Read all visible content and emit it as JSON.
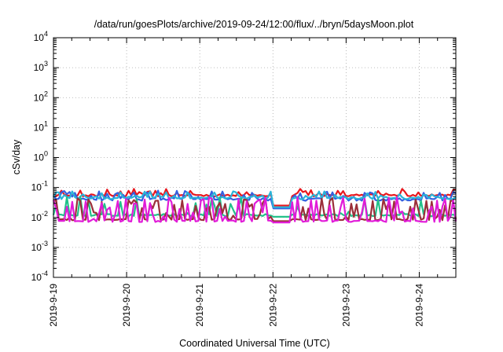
{
  "chart_data": {
    "type": "line",
    "title": "/data/run/goesPlots/archive/2019-09-24/12:00/flux/../bryn/5daysMoon.plot",
    "xlabel": "Coordinated Universal Time (UTC)",
    "ylabel": "cSv/day",
    "yscale": "log",
    "ylim": [
      0.0001,
      10000
    ],
    "y_ticks": [
      {
        "base": "10",
        "exp": "-4",
        "value": 0.0001
      },
      {
        "base": "10",
        "exp": "-3",
        "value": 0.001
      },
      {
        "base": "10",
        "exp": "-2",
        "value": 0.01
      },
      {
        "base": "10",
        "exp": "-1",
        "value": 0.1
      },
      {
        "base": "10",
        "exp": "0",
        "value": 1
      },
      {
        "base": "10",
        "exp": "1",
        "value": 10
      },
      {
        "base": "10",
        "exp": "2",
        "value": 100
      },
      {
        "base": "10",
        "exp": "3",
        "value": 1000
      },
      {
        "base": "10",
        "exp": "4",
        "value": 10000
      }
    ],
    "x_ticks": [
      "2019-9-19",
      "2019-9-20",
      "2019-9-21",
      "2019-9-22",
      "2019-9-23",
      "2019-9-24"
    ],
    "xlim": [
      "2019-09-19T00:00",
      "2019-09-24T12:00"
    ],
    "grid": true,
    "series": [
      {
        "color": "#e8171e",
        "base": 0.055,
        "dip": 0.05,
        "low": 0.025,
        "spike": 0.09,
        "spike_rate": 0.35,
        "jitter": 0.08,
        "seed": 11
      },
      {
        "color": "#3560e0",
        "base": 0.04,
        "dip": 0.04,
        "low": 0.02,
        "spike": 0.08,
        "spike_rate": 0.3,
        "jitter": 0.1,
        "seed": 23
      },
      {
        "color": "#2ab4d8",
        "base": 0.045,
        "dip": 0.045,
        "low": 0.022,
        "spike": 0.075,
        "spike_rate": 0.3,
        "jitter": 0.1,
        "seed": 31
      },
      {
        "color": "#23c18a",
        "base": 0.012,
        "dip": 0.011,
        "low": 0.0105,
        "spike": 0.05,
        "spike_rate": 0.25,
        "jitter": 0.08,
        "seed": 47
      },
      {
        "color": "#9b2f3a",
        "base": 0.0085,
        "dip": 0.0085,
        "low": 0.0075,
        "spike": 0.045,
        "spike_rate": 0.4,
        "jitter": 0.05,
        "seed": 59
      },
      {
        "color": "#e11bd8",
        "base": 0.0075,
        "dip": 0.0075,
        "low": 0.0068,
        "spike": 0.05,
        "spike_rate": 0.45,
        "jitter": 0.06,
        "seed": 71
      }
    ]
  }
}
